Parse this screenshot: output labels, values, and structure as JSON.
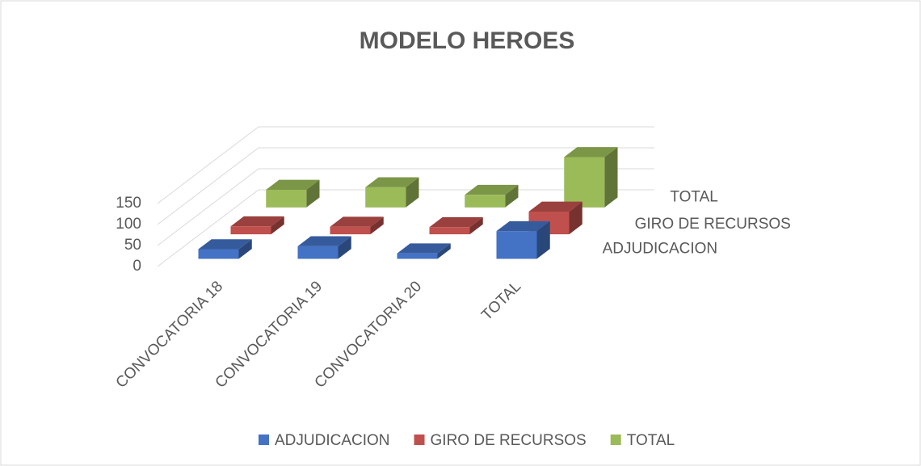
{
  "chart_data": {
    "type": "bar",
    "title": "MODELO HEROES",
    "categories": [
      "CONVOCATORIA 18",
      "CONVOCATORIA 19",
      "CONVOCATORIA 20",
      "TOTAL"
    ],
    "series": [
      {
        "name": "ADJUDICACION",
        "color": "#4472c4",
        "values": [
          23,
          30,
          13,
          66
        ]
      },
      {
        "name": "GIRO DE RECURSOS",
        "color": "#c0504d",
        "values": [
          19,
          18,
          17,
          54
        ]
      },
      {
        "name": "TOTAL",
        "color": "#9bbb59",
        "values": [
          42,
          48,
          30,
          120
        ]
      }
    ],
    "ylim": [
      0,
      150
    ],
    "yticks": [
      0,
      50,
      100,
      150
    ],
    "grid": true,
    "legend": "bottom"
  }
}
